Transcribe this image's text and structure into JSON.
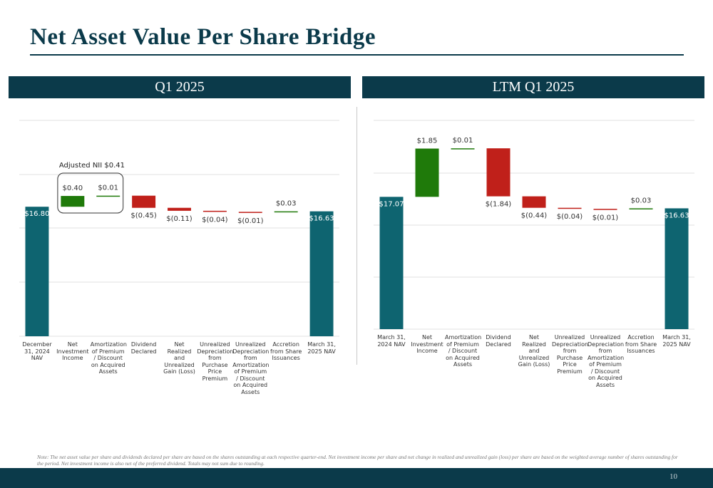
{
  "title": "Net Asset Value Per Share Bridge",
  "chart_data": [
    {
      "type": "waterfall",
      "title": "Q1 2025",
      "categories": [
        "December 31, 2024 NAV",
        "Net Investment Income",
        "Amortization of Premium / Discount on Acquired Assets",
        "Dividend Declared",
        "Net Realized and Unrealized Gain (Loss)",
        "Unrealized Depreciation from Purchase Price Premium",
        "Unrealized Depreciation from Amortization of Premium / Discount on Acquired Assets",
        "Accretion from Share Issuances",
        "March 31, 2025 NAV"
      ],
      "values": [
        16.8,
        0.4,
        0.01,
        -0.45,
        -0.11,
        -0.04,
        -0.01,
        0.03,
        16.63
      ],
      "value_labels": [
        "$16.80",
        "$0.40",
        "$0.01",
        "$(0.45)",
        "$(0.11)",
        "$(0.04)",
        "$(0.01)",
        "$0.03",
        "$16.63"
      ],
      "annotation": "Adjusted NII $0.41",
      "ylim": [
        12,
        20
      ],
      "colors": {
        "total": "#0e6470",
        "increase": "#1f7a0a",
        "decrease": "#c0201a"
      }
    },
    {
      "type": "waterfall",
      "title": "LTM Q1 2025",
      "categories": [
        "March 31, 2024 NAV",
        "Net Investment Income",
        "Amortization of Premium / Discount on Acquired Assets",
        "Dividend Declared",
        "Net Realized and Unrealized Gain (Loss)",
        "Unrealized Depreciation from Purchase Price Premium",
        "Unrealized Depreciation from Amortization of Premium / Discount on Acquired Assets",
        "Accretion from Share Issuances",
        "March 31, 2025 NAV"
      ],
      "values": [
        17.07,
        1.85,
        0.01,
        -1.84,
        -0.44,
        -0.04,
        -0.01,
        0.03,
        16.63
      ],
      "value_labels": [
        "$17.07",
        "$1.85",
        "$0.01",
        "$(1.84)",
        "$(0.44)",
        "$(0.04)",
        "$(0.01)",
        "$0.03",
        "$16.63"
      ],
      "ylim": [
        12,
        20
      ],
      "colors": {
        "total": "#0e6470",
        "increase": "#1f7a0a",
        "decrease": "#c0201a"
      }
    }
  ],
  "note": "Note: The net asset value per share and dividends declared per share are based on the shares outstanding at each respective quarter-end. Net investment income per share and net change in realized and unrealized gain (loss) per share are based on the weighted average number of shares outstanding for the period. Net investment income is also net of the preferred dividend. Totals may not sum due to rounding.",
  "page_number": "10"
}
